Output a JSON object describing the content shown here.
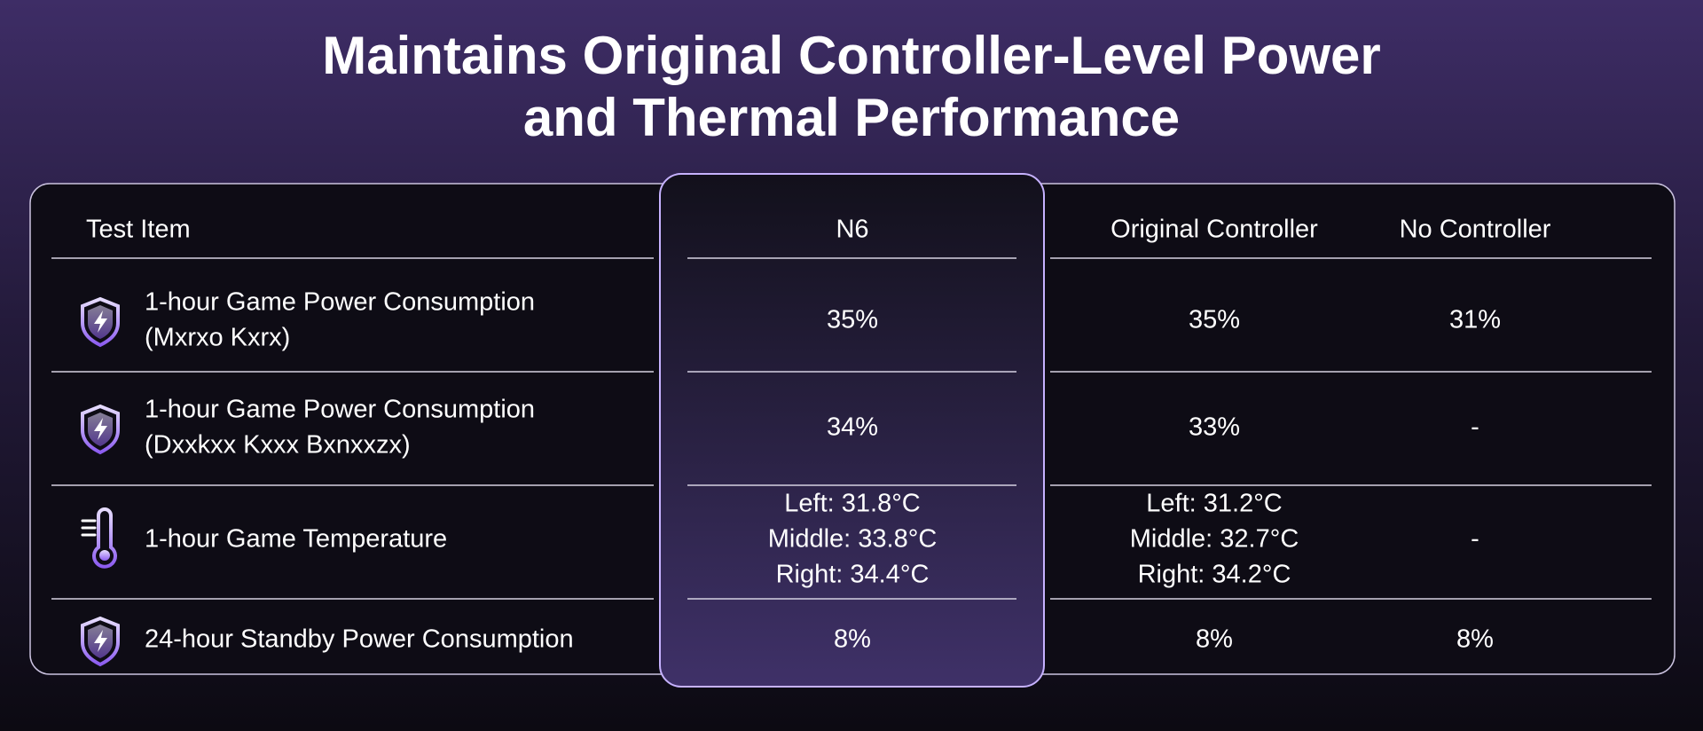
{
  "title": [
    "Maintains Original Controller-Level Power",
    "and Thermal Performance"
  ],
  "table": {
    "header": [
      "Test Item",
      "N6",
      "Original Controller",
      "No Controller"
    ],
    "rows": [
      {
        "item": [
          "1-hour Game Power Consumption",
          "(Mxrxo Kxrx)"
        ],
        "cells": [
          [
            "35%"
          ],
          [
            "35%"
          ],
          [
            "31%"
          ]
        ]
      },
      {
        "item": [
          "1-hour Game Power Consumption",
          "(Dxxkxx Kxxx Bxnxxzx)"
        ],
        "cells": [
          [
            "34%"
          ],
          [
            "33%"
          ],
          [
            "-"
          ]
        ]
      },
      {
        "item": [
          "1-hour Game Temperature"
        ],
        "cells": [
          [
            "Left: 31.8°C",
            "Middle: 33.8°C",
            "Right: 34.4°C"
          ],
          [
            "Left: 31.2°C",
            "Middle: 32.7°C",
            "Right: 34.2°C"
          ],
          [
            "-"
          ]
        ]
      },
      {
        "item": [
          "24-hour Standby Power Consumption"
        ],
        "cells": [
          [
            "8%"
          ],
          [
            "8%"
          ],
          [
            "8%"
          ]
        ]
      }
    ]
  }
}
